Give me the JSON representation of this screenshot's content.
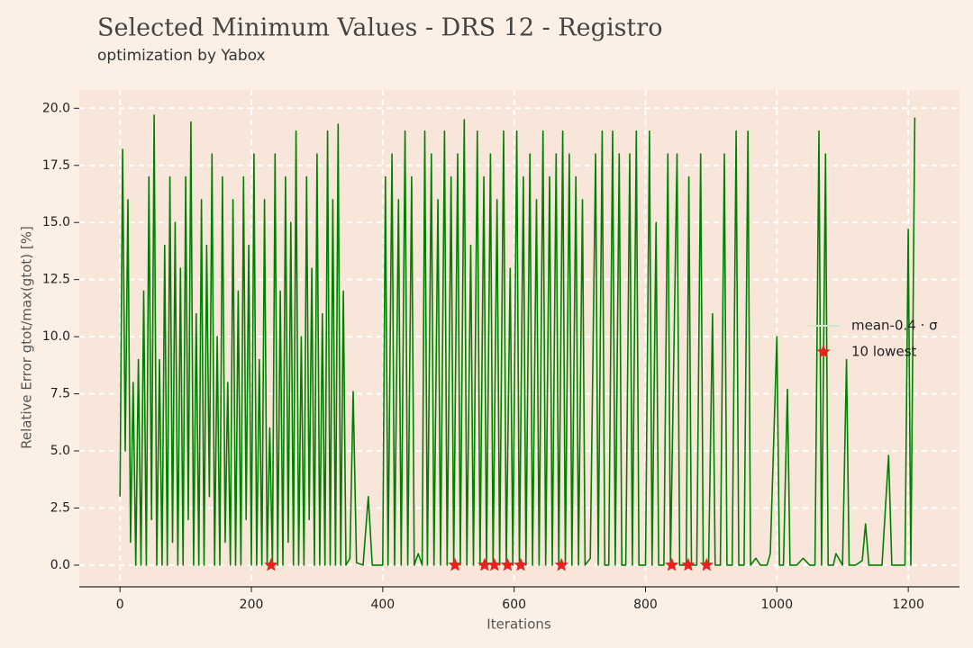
{
  "chart_data": {
    "type": "line",
    "title": "Selected Minimum Values - DRS 12 - Registro",
    "subtitle": "optimization by Yabox",
    "xlabel": "Iterations",
    "ylabel": "Relative Error gtot/max(gtot) [%]",
    "xlim": [
      -62,
      1278
    ],
    "ylim": [
      -0.87,
      20.8
    ],
    "xticks": [
      0,
      200,
      400,
      600,
      800,
      1000,
      1200
    ],
    "yticks": [
      {
        "value": 0,
        "label": "0.0"
      },
      2.5,
      {
        "value": 5,
        "label": "5.0"
      },
      7.5,
      {
        "value": 10,
        "label": "10.0"
      },
      12.5,
      {
        "value": 15,
        "label": "15.0"
      },
      17.5,
      {
        "value": 20,
        "label": "20.0"
      }
    ],
    "grid": true,
    "legend": "center right",
    "series": [
      {
        "name": "mean-0.4 · σ",
        "color": "#008000",
        "x": [
          0,
          4,
          8,
          12,
          16,
          20,
          24,
          28,
          32,
          36,
          40,
          44,
          48,
          52,
          56,
          60,
          64,
          68,
          72,
          76,
          80,
          84,
          88,
          92,
          96,
          100,
          104,
          108,
          112,
          116,
          120,
          124,
          128,
          132,
          136,
          140,
          144,
          148,
          152,
          156,
          160,
          164,
          168,
          172,
          176,
          180,
          184,
          188,
          192,
          196,
          200,
          204,
          208,
          212,
          216,
          220,
          224,
          228,
          232,
          236,
          240,
          244,
          248,
          252,
          256,
          260,
          264,
          268,
          272,
          276,
          280,
          284,
          288,
          292,
          296,
          300,
          304,
          308,
          312,
          316,
          320,
          324,
          328,
          332,
          336,
          340,
          344,
          350,
          355,
          360,
          370,
          378,
          384,
          392,
          400,
          404,
          408,
          414,
          418,
          424,
          428,
          434,
          438,
          444,
          448,
          454,
          460,
          464,
          468,
          474,
          478,
          484,
          488,
          494,
          498,
          504,
          508,
          514,
          518,
          524,
          528,
          534,
          538,
          544,
          548,
          554,
          558,
          564,
          568,
          574,
          578,
          584,
          588,
          594,
          598,
          604,
          608,
          614,
          618,
          624,
          628,
          634,
          638,
          644,
          648,
          654,
          658,
          664,
          668,
          674,
          678,
          684,
          688,
          694,
          698,
          704,
          708,
          716,
          724,
          728,
          734,
          738,
          744,
          750,
          754,
          760,
          764,
          770,
          776,
          780,
          786,
          790,
          800,
          806,
          810,
          816,
          820,
          828,
          834,
          838,
          848,
          852,
          862,
          866,
          870,
          878,
          884,
          888,
          896,
          902,
          906,
          914,
          920,
          924,
          932,
          938,
          942,
          950,
          956,
          960,
          968,
          975,
          985,
          990,
          1000,
          1004,
          1010,
          1016,
          1020,
          1030,
          1040,
          1050,
          1058,
          1064,
          1068,
          1074,
          1078,
          1086,
          1090,
          1100,
          1106,
          1110,
          1120,
          1130,
          1135,
          1140,
          1150,
          1160,
          1170,
          1175,
          1185,
          1195,
          1200,
          1204,
          1210
        ],
        "values": [
          3,
          18.2,
          5,
          16,
          1,
          8,
          0,
          9,
          0,
          12,
          0,
          17,
          2,
          19.7,
          0,
          9,
          0,
          14,
          0,
          17,
          1,
          15,
          0,
          13,
          0,
          17,
          2,
          19.4,
          0,
          11,
          0,
          16,
          0,
          14,
          3,
          18,
          0,
          10,
          0,
          17,
          1,
          8,
          0,
          16,
          0,
          12,
          0,
          17,
          2,
          14,
          0,
          18,
          0,
          9,
          0,
          16,
          0,
          6,
          0,
          18,
          0,
          12,
          0,
          17,
          1,
          15,
          0,
          19,
          0,
          10,
          0,
          17,
          2,
          13,
          0,
          18,
          0,
          11,
          0,
          19,
          0,
          16,
          0,
          19.3,
          0,
          12,
          0,
          0.3,
          7.6,
          0.1,
          0,
          3,
          0,
          0,
          0,
          17,
          0,
          18,
          0,
          16,
          0,
          19,
          0,
          17,
          0,
          0.5,
          0,
          19,
          0,
          18,
          0,
          16,
          0,
          19,
          0,
          17,
          0,
          18,
          0,
          19.5,
          0,
          14,
          0,
          19,
          0,
          17,
          0,
          18,
          0,
          16,
          0,
          19,
          0,
          13,
          0,
          19,
          0,
          17,
          0,
          18,
          0,
          16,
          0,
          19,
          0,
          17,
          0,
          18,
          0,
          19,
          0,
          18,
          0,
          17,
          0,
          16,
          0,
          0.3,
          18,
          0,
          19,
          0,
          0,
          19,
          0,
          18,
          0,
          0,
          18,
          0,
          19,
          0,
          0,
          19,
          0,
          15,
          0,
          0,
          18,
          0,
          18,
          0,
          0,
          17,
          0,
          0,
          18,
          0,
          0,
          11,
          0,
          0,
          18,
          0,
          0,
          19,
          0,
          0,
          19,
          0,
          0.3,
          0,
          0,
          0.5,
          10,
          0,
          0,
          7.7,
          0,
          0,
          0.3,
          0,
          0,
          19,
          0,
          18,
          0,
          0,
          0.5,
          0,
          9,
          0,
          0,
          0.2,
          1.8,
          0,
          0,
          0,
          4.8,
          0,
          0,
          0,
          14.7,
          0,
          19.6
        ]
      },
      {
        "name": "10 lowest",
        "color": "#e8231e",
        "marker": "star",
        "x": [
          230,
          510,
          555,
          570,
          590,
          610,
          672,
          840,
          865,
          893
        ],
        "values": [
          0,
          0,
          0,
          0,
          0,
          0,
          0,
          0,
          0,
          0
        ]
      }
    ]
  }
}
